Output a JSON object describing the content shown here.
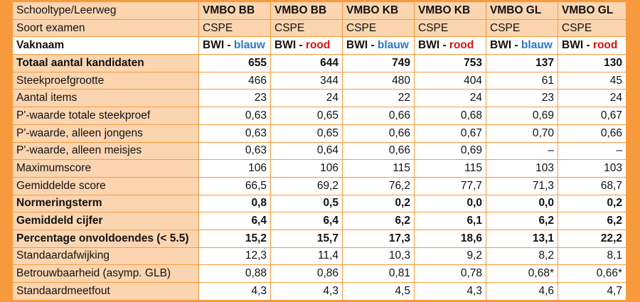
{
  "header": {
    "label": "Schooltype/Leerweg",
    "columns": [
      "VMBO BB",
      "VMBO BB",
      "VMBO KB",
      "VMBO KB",
      "VMBO GL",
      "VMBO GL"
    ]
  },
  "exam_type": {
    "label": "Soort examen",
    "values": [
      "CSPE",
      "CSPE",
      "CSPE",
      "CSPE",
      "CSPE",
      "CSPE"
    ]
  },
  "subject": {
    "label": "Vaknaam",
    "prefix": "BWI",
    "separator": " - ",
    "variants": [
      {
        "text": "blauw",
        "color": "#2f75c8"
      },
      {
        "text": "rood",
        "color": "#e01010"
      },
      {
        "text": "blauw",
        "color": "#2f75c8"
      },
      {
        "text": "rood",
        "color": "#e01010"
      },
      {
        "text": "blauw",
        "color": "#2f75c8"
      },
      {
        "text": "rood",
        "color": "#e01010"
      }
    ]
  },
  "rows": [
    {
      "label": "Totaal aantal kandidaten",
      "bold": true,
      "values": [
        "655",
        "644",
        "749",
        "753",
        "137",
        "130"
      ]
    },
    {
      "label": "Steekproefgrootte",
      "bold": false,
      "values": [
        "466",
        "344",
        "480",
        "404",
        "61",
        "45"
      ]
    },
    {
      "label": "Aantal items",
      "bold": false,
      "values": [
        "23",
        "24",
        "22",
        "24",
        "23",
        "24"
      ]
    },
    {
      "label": "P'-waarde totale steekproef",
      "bold": false,
      "values": [
        "0,63",
        "0,65",
        "0,66",
        "0,68",
        "0,69",
        "0,67"
      ]
    },
    {
      "label": "P'-waarde, alleen jongens",
      "bold": false,
      "values": [
        "0,63",
        "0,65",
        "0,66",
        "0,67",
        "0,70",
        "0,66"
      ]
    },
    {
      "label": "P'-waarde, alleen meisjes",
      "bold": false,
      "values": [
        "0,63",
        "0,64",
        "0,66",
        "0,69",
        "–",
        "–"
      ]
    },
    {
      "label": "Maximumscore",
      "bold": false,
      "values": [
        "106",
        "106",
        "115",
        "115",
        "103",
        "103"
      ]
    },
    {
      "label": "Gemiddelde score",
      "bold": false,
      "values": [
        "66,5",
        "69,2",
        "76,2",
        "77,7",
        "71,3",
        "68,7"
      ]
    },
    {
      "label": "Normeringsterm",
      "bold": true,
      "values": [
        "0,8",
        "0,5",
        "0,2",
        "0,0",
        "0,0",
        "0,2"
      ]
    },
    {
      "label": "Gemiddeld cijfer",
      "bold": true,
      "values": [
        "6,4",
        "6,4",
        "6,2",
        "6,1",
        "6,2",
        "6,2"
      ]
    },
    {
      "label": "Percentage onvoldoendes (< 5.5)",
      "bold": true,
      "values": [
        "15,2",
        "15,7",
        "17,3",
        "18,6",
        "13,1",
        "22,2"
      ]
    },
    {
      "label": "Standaardafwijking",
      "bold": false,
      "values": [
        "12,3",
        "11,4",
        "10,3",
        "9,2",
        "8,2",
        "8,1"
      ]
    },
    {
      "label": "Betrouwbaarheid (asymp. GLB)",
      "bold": false,
      "values": [
        "0,88",
        "0,86",
        "0,81",
        "0,78",
        "0,68*",
        "0,66*"
      ]
    },
    {
      "label": "Standaardmeetfout",
      "bold": false,
      "values": [
        "4,3",
        "4,3",
        "4,5",
        "4,3",
        "4,6",
        "4,7"
      ]
    }
  ],
  "colors": {
    "background": "#f79a3e",
    "label_cell": "#fbd5b0",
    "value_cell": "#ffffff",
    "blue": "#2f75c8",
    "red": "#e01010"
  }
}
